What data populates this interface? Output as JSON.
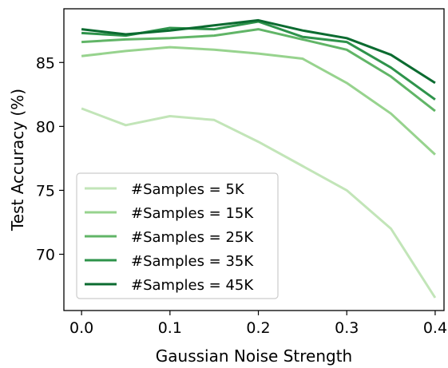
{
  "chart_data": {
    "type": "line",
    "xlabel": "Gaussian Noise Strength",
    "ylabel": "Test Accuracy (%)",
    "xlim": [
      -0.02,
      0.41
    ],
    "ylim": [
      65.6,
      89.2
    ],
    "x": [
      0.0,
      0.05,
      0.1,
      0.15,
      0.2,
      0.25,
      0.3,
      0.35,
      0.4
    ],
    "xticks": [
      0.0,
      0.1,
      0.2,
      0.3,
      0.4
    ],
    "xtick_labels": [
      "0.0",
      "0.1",
      "0.2",
      "0.3",
      "0.4"
    ],
    "yticks": [
      70,
      75,
      80,
      85
    ],
    "ytick_labels": [
      "70",
      "75",
      "80",
      "85"
    ],
    "grid": false,
    "legend_position": "lower-left",
    "series": [
      {
        "name": "#Samples = 5K",
        "color": "#c2e5b8",
        "values": [
          81.4,
          80.1,
          80.8,
          80.5,
          78.8,
          76.9,
          75.0,
          72.0,
          66.6
        ]
      },
      {
        "name": "#Samples = 15K",
        "color": "#97d38e",
        "values": [
          85.5,
          85.9,
          86.2,
          86.0,
          85.7,
          85.3,
          83.4,
          81.0,
          77.8
        ]
      },
      {
        "name": "#Samples = 25K",
        "color": "#61b567",
        "values": [
          86.6,
          86.8,
          86.9,
          87.1,
          87.6,
          86.8,
          86.0,
          83.9,
          81.2
        ]
      },
      {
        "name": "#Samples = 35K",
        "color": "#2e934b",
        "values": [
          87.3,
          87.1,
          87.7,
          87.6,
          88.2,
          87.0,
          86.6,
          84.6,
          82.1
        ]
      },
      {
        "name": "#Samples = 45K",
        "color": "#0b6b30",
        "values": [
          87.6,
          87.2,
          87.5,
          87.9,
          88.3,
          87.5,
          86.9,
          85.6,
          83.4
        ]
      }
    ]
  }
}
